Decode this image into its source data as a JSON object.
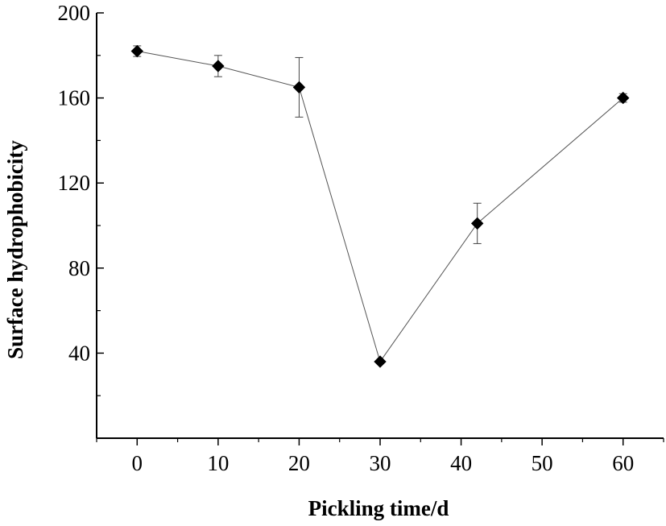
{
  "chart_data": {
    "type": "line",
    "title": "",
    "xlabel": "Pickling time/d",
    "ylabel": "Surface hydrophobicity",
    "xlim": [
      -5,
      65
    ],
    "ylim": [
      0,
      200
    ],
    "x_ticks": [
      0,
      10,
      20,
      30,
      40,
      50,
      60
    ],
    "y_ticks": [
      40,
      80,
      120,
      160,
      200
    ],
    "grid": false,
    "legend": "none",
    "series": [
      {
        "marker": "diamond",
        "color": "#000000",
        "x": [
          0,
          10,
          20,
          30,
          42,
          60
        ],
        "y": [
          182,
          175,
          165,
          36,
          101,
          160
        ],
        "error": [
          2.5,
          5,
          14,
          0,
          9.5,
          2
        ]
      }
    ]
  }
}
